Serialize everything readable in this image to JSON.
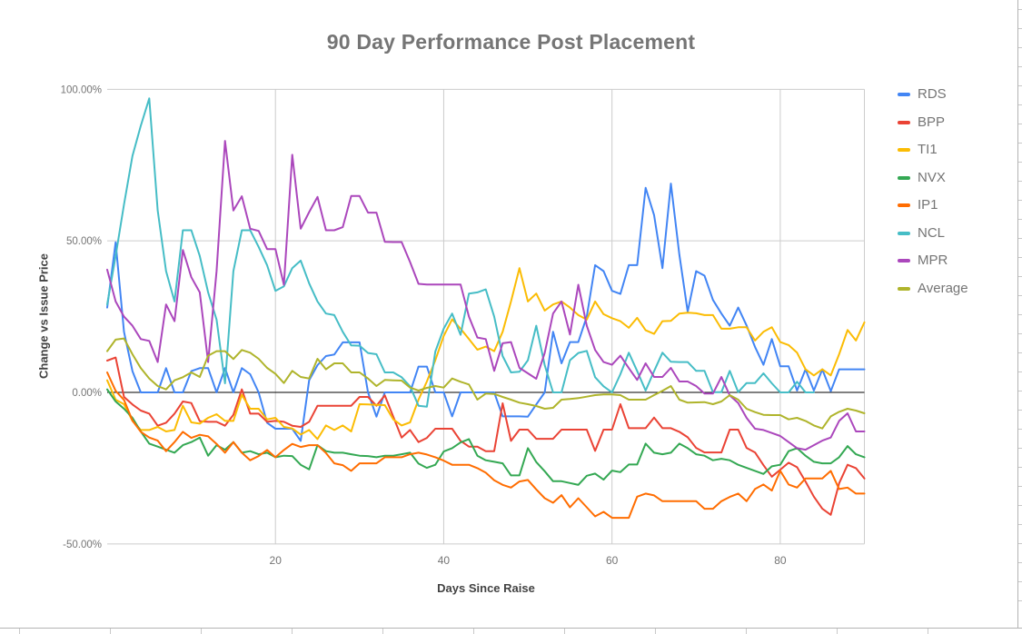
{
  "chart_data": {
    "type": "line",
    "title": "90 Day Performance Post Placement",
    "xlabel": "Days Since Raise",
    "ylabel": "Change vs Issue Price",
    "x_start": 0,
    "x_step": 1,
    "xlim": [
      0,
      90
    ],
    "ylim": [
      -50,
      100
    ],
    "xticks": [
      20,
      40,
      60,
      80
    ],
    "xtick_labels": [
      "20",
      "40",
      "60",
      "80"
    ],
    "yticks": [
      100,
      50,
      0,
      -50
    ],
    "ytick_labels": [
      "100.00%",
      "50.00%",
      "0.00%",
      "-50.00%"
    ],
    "grid": true,
    "zero_line_color": "#000000",
    "grid_color": "#cccccc",
    "legend_position": "right",
    "series": [
      {
        "name": "RDS",
        "color": "#4285F4",
        "values": [
          28,
          49.5,
          20,
          7,
          0,
          0,
          0,
          8,
          0,
          0,
          7,
          8,
          8,
          0,
          8,
          0,
          8,
          6,
          0,
          -10,
          -12,
          -12,
          -12,
          -16,
          4,
          9,
          12,
          12.5,
          16.5,
          16.5,
          16.5,
          0,
          -8,
          0,
          0,
          0,
          0,
          8.5,
          8.5,
          0,
          0,
          -7.9,
          0,
          0,
          0,
          0,
          0,
          -7.9,
          -7.9,
          -7.9,
          -8,
          -4,
          0,
          20,
          9.6,
          16.6,
          16.6,
          25,
          42,
          40,
          33.5,
          32.5,
          42,
          42,
          67.5,
          58.5,
          41,
          68.9,
          45.5,
          26.6,
          40,
          38.5,
          30.5,
          26,
          22,
          28,
          22.1,
          15,
          9.1,
          17.6,
          8.6,
          8.6,
          0.6,
          7.6,
          0.6,
          7.6,
          0.4,
          7.6,
          7.6,
          7.6,
          7.6
        ]
      },
      {
        "name": "BPP",
        "color": "#EA4335",
        "values": [
          10.5,
          11.5,
          -1.5,
          -4,
          -6,
          -7,
          -11,
          -10,
          -7,
          -3,
          -3.5,
          -9.5,
          -9.7,
          -9.7,
          -11,
          -7.4,
          1,
          -7,
          -7,
          -9.7,
          -9.4,
          -9.7,
          -11,
          -11.4,
          -9.7,
          -4.4,
          -4.4,
          -4.4,
          -4.4,
          -4.4,
          -1.5,
          -1.5,
          -4.4,
          -1,
          -8,
          -14.9,
          -12.4,
          -16.4,
          -15,
          -12,
          -12,
          -12,
          -16,
          -17.9,
          -17.9,
          -19.4,
          -19.4,
          -3.6,
          -16,
          -12.3,
          -12.3,
          -15.3,
          -15.3,
          -15.3,
          -12.3,
          -12.3,
          -12.3,
          -12.3,
          -19.3,
          -12.3,
          -12.3,
          -3.9,
          -11.8,
          -11.8,
          -11.8,
          -8.3,
          -11.8,
          -11.8,
          -13,
          -14.8,
          -18.3,
          -19.8,
          -19.8,
          -19.8,
          -12.3,
          -12.3,
          -18.3,
          -19.8,
          -24,
          -27.8,
          -25.5,
          -23.2,
          -24.7,
          -29.4,
          -34.4,
          -38.4,
          -40.4,
          -30,
          -23.9,
          -25,
          -28.4
        ]
      },
      {
        "name": "TI1",
        "color": "#FBBC04",
        "values": [
          4,
          -2.4,
          -3.9,
          -9.4,
          -12.4,
          -12.4,
          -11.4,
          -12.9,
          -12.4,
          -4.4,
          -9.9,
          -10.3,
          -8.4,
          -7.2,
          -9.4,
          -9.4,
          -0.8,
          -5.4,
          -5.4,
          -8.9,
          -8.4,
          -11.4,
          -11.9,
          -13.9,
          -12.4,
          -15.4,
          -10.9,
          -12.4,
          -10.9,
          -12.9,
          -3.9,
          -4,
          -4.1,
          -4.2,
          -8.9,
          -10.9,
          -9.9,
          -2.4,
          3.6,
          10.6,
          18.6,
          24.1,
          21,
          17.6,
          14.1,
          15.1,
          13.6,
          20,
          30,
          41,
          30,
          32.6,
          27,
          29,
          30,
          28,
          25.5,
          24,
          30,
          25.8,
          24.5,
          23.5,
          21.3,
          24.6,
          20.5,
          19.3,
          23.5,
          23.6,
          26,
          26.3,
          26.1,
          25.5,
          25.5,
          21,
          21,
          21.5,
          21.5,
          17.1,
          20,
          21.5,
          16.6,
          15.6,
          13.1,
          7.6,
          5.6,
          7.6,
          5.6,
          12.6,
          20.6,
          17.1,
          23.1
        ]
      },
      {
        "name": "NVX",
        "color": "#34A853",
        "values": [
          1,
          -3,
          -5.4,
          -8.4,
          -12.9,
          -16.9,
          -17.9,
          -18.9,
          -19.9,
          -17.4,
          -16.4,
          -14.9,
          -20.9,
          -17.4,
          -18.9,
          -16.4,
          -19.9,
          -19.4,
          -20.4,
          -19.9,
          -21.4,
          -20.9,
          -21,
          -23.9,
          -25.4,
          -17.4,
          -19.4,
          -19.9,
          -19.9,
          -20.4,
          -20.9,
          -21,
          -21.4,
          -20.9,
          -20.9,
          -20.4,
          -19.9,
          -23.5,
          -24.9,
          -23.9,
          -19.5,
          -18.4,
          -16.5,
          -15.4,
          -20.9,
          -22.4,
          -22.9,
          -23.4,
          -27.4,
          -27.4,
          -18.4,
          -23,
          -26,
          -29.3,
          -29.3,
          -29.9,
          -30.5,
          -27.5,
          -26.8,
          -28.8,
          -25.8,
          -26.3,
          -23.8,
          -23.8,
          -16.9,
          -19.9,
          -20.4,
          -19.9,
          -16.9,
          -18.4,
          -20.4,
          -20.9,
          -22.4,
          -21.9,
          -22.4,
          -23.9,
          -24.9,
          -25.9,
          -26.9,
          -24.4,
          -23.9,
          -19.4,
          -18.4,
          -20.9,
          -22.9,
          -23.4,
          -23.4,
          -21.4,
          -17.7,
          -20.4,
          -21.4
        ]
      },
      {
        "name": "IP1",
        "color": "#FF6D01",
        "values": [
          6.6,
          0.5,
          -2.5,
          -9.3,
          -13,
          -14.9,
          -15.9,
          -19.4,
          -16.4,
          -13,
          -15,
          -14,
          -14.5,
          -17,
          -19.9,
          -16.4,
          -19.9,
          -22.4,
          -21,
          -19,
          -21.4,
          -19,
          -17,
          -18,
          -17.4,
          -17.4,
          -20,
          -23.4,
          -24,
          -25.9,
          -23.4,
          -23.4,
          -23.4,
          -21.4,
          -21.4,
          -21.4,
          -20.4,
          -19.9,
          -20.5,
          -21.4,
          -22.5,
          -23.9,
          -23.9,
          -23.9,
          -25,
          -26.5,
          -29,
          -30.5,
          -31.4,
          -29.4,
          -28.9,
          -32,
          -34.9,
          -36.4,
          -33.9,
          -37.9,
          -34.9,
          -37.9,
          -40.9,
          -39.4,
          -41.4,
          -41.4,
          -41.4,
          -34.4,
          -33.4,
          -34,
          -35.9,
          -35.9,
          -35.9,
          -35.9,
          -35.9,
          -38.4,
          -38.4,
          -35.9,
          -34.5,
          -33.4,
          -35.9,
          -31.9,
          -30.4,
          -32.4,
          -25.9,
          -30.4,
          -31.4,
          -28.4,
          -28.4,
          -28.4,
          -25.9,
          -31.9,
          -31.4,
          -33.4,
          -33.4
        ]
      },
      {
        "name": "NCL",
        "color": "#46BDC6",
        "values": [
          29,
          45,
          62,
          78,
          88,
          97,
          60,
          40,
          30,
          53.5,
          53.5,
          45,
          33,
          24,
          3,
          40,
          53.5,
          53.5,
          48,
          42,
          33.5,
          35,
          41,
          43.5,
          36,
          30,
          26,
          25.5,
          20,
          15.5,
          15.4,
          13,
          12.6,
          6.6,
          6.6,
          5,
          2,
          -4.4,
          -4.7,
          13.5,
          21,
          26,
          19,
          32.6,
          33,
          34,
          25,
          12,
          6.6,
          6.8,
          10.6,
          22,
          9,
          0,
          0,
          10.6,
          13,
          13.7,
          5,
          2,
          0,
          6,
          13.1,
          7,
          0.6,
          7,
          13.1,
          10.1,
          10,
          10,
          7.1,
          7.1,
          0.1,
          0.1,
          7.1,
          0.1,
          3.1,
          3.1,
          6.3,
          3,
          0,
          0,
          3.5,
          0,
          0,
          null,
          null,
          null,
          null,
          null,
          null
        ]
      },
      {
        "name": "MPR",
        "color": "#AB47BC",
        "values": [
          40.5,
          30,
          25,
          22,
          17.6,
          17,
          10,
          29,
          23.5,
          47,
          38,
          33,
          10,
          40,
          83,
          60,
          64.7,
          54,
          53.3,
          47.3,
          47.3,
          35.5,
          78.4,
          54,
          59.5,
          64.5,
          53.5,
          53.5,
          54.5,
          64.8,
          64.8,
          59.3,
          59.3,
          49.7,
          49.6,
          49.6,
          43,
          35.8,
          35.6,
          35.6,
          35.6,
          35.6,
          35.6,
          25,
          18.1,
          17.6,
          7.1,
          16.2,
          16.6,
          8.1,
          6.3,
          4.5,
          13,
          26,
          30,
          19.1,
          35.5,
          22,
          14,
          10,
          9.1,
          12.1,
          8,
          4.1,
          9.6,
          5.1,
          5.1,
          8.1,
          3.6,
          3.6,
          2.1,
          -0.4,
          -0.4,
          5.1,
          -1,
          -3.5,
          -8.4,
          -12,
          -12.4,
          -13.4,
          -14.4,
          -16.4,
          -18.4,
          -18.9,
          -17.4,
          -15.9,
          -14.9,
          -9.4,
          -6.9,
          -12.9,
          -12.9
        ]
      },
      {
        "name": "Average",
        "color": "#AFB42B",
        "values": [
          13.6,
          17.4,
          17.8,
          12.6,
          8,
          4.6,
          2.1,
          1,
          4,
          5,
          6.6,
          5.1,
          12.1,
          13.6,
          13.6,
          11,
          14,
          13.1,
          11.1,
          8.1,
          6.1,
          3.1,
          7.1,
          5.1,
          4.6,
          11.1,
          7.6,
          9.6,
          9.6,
          6.6,
          6.6,
          4.6,
          2.1,
          4.1,
          4,
          3.9,
          1.6,
          0.6,
          1.5,
          2.1,
          1.6,
          4.6,
          3.5,
          2.6,
          -2.4,
          -0.4,
          -0.5,
          -1.5,
          -2.4,
          -3.4,
          -3.9,
          -4.5,
          -5.4,
          -5.1,
          -2.4,
          -2.2,
          -1.9,
          -1.4,
          -0.9,
          -0.7,
          -0.7,
          -0.9,
          -2.4,
          -2.4,
          -2.4,
          -0.9,
          0.5,
          2.1,
          -2.4,
          -3.4,
          -3.3,
          -3.2,
          -3.9,
          -3,
          -0.9,
          -2.4,
          -5.4,
          -6.5,
          -7.4,
          -7.5,
          -7.5,
          -8.9,
          -8.4,
          -9.4,
          -10.9,
          -11.9,
          -7.9,
          -6.4,
          -5.4,
          -6,
          -6.9
        ]
      }
    ]
  }
}
